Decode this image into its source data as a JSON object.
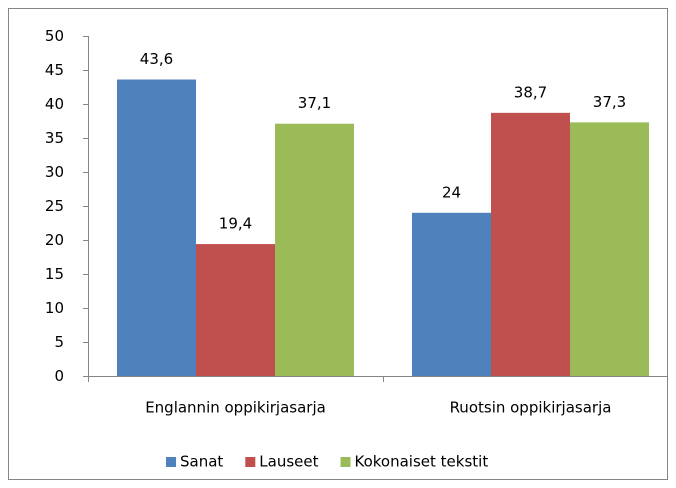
{
  "chart_data": {
    "type": "bar",
    "categories": [
      "Englannin oppikirjasarja",
      "Ruotsin oppikirjasarja"
    ],
    "series": [
      {
        "name": "Sanat",
        "color": "#4f81bd",
        "values": [
          43.6,
          24
        ],
        "value_labels": [
          "43,6",
          "24"
        ]
      },
      {
        "name": "Lauseet",
        "color": "#c0504d",
        "values": [
          19.4,
          38.7
        ],
        "value_labels": [
          "19,4",
          "38,7"
        ]
      },
      {
        "name": "Kokonaiset tekstit",
        "color": "#9bbb59",
        "values": [
          37.1,
          37.3
        ],
        "value_labels": [
          "37,1",
          "37,3"
        ]
      }
    ],
    "ylim": [
      0,
      50
    ],
    "yticks": [
      0,
      5,
      10,
      15,
      20,
      25,
      30,
      35,
      40,
      45,
      50
    ],
    "grid": false,
    "legend": "bottom"
  }
}
